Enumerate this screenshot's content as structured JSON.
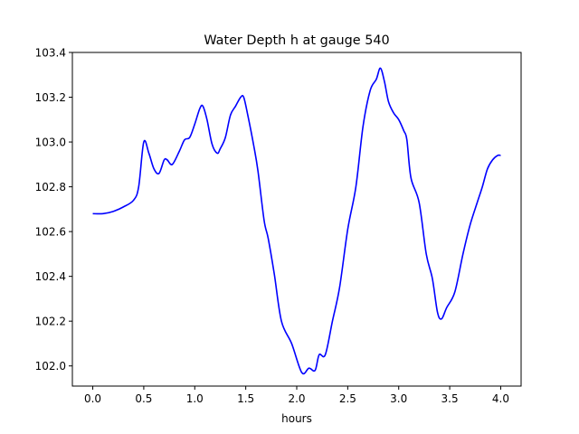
{
  "chart_data": {
    "type": "line",
    "title": "Water Depth h at gauge 540",
    "xlabel": "hours",
    "ylabel": "",
    "xlim": [
      -0.2,
      4.2
    ],
    "ylim": [
      101.91,
      103.4
    ],
    "xticks": [
      0.0,
      0.5,
      1.0,
      1.5,
      2.0,
      2.5,
      3.0,
      3.5,
      4.0
    ],
    "xtick_labels": [
      "0.0",
      "0.5",
      "1.0",
      "1.5",
      "2.0",
      "2.5",
      "3.0",
      "3.5",
      "4.0"
    ],
    "yticks": [
      102.0,
      102.2,
      102.4,
      102.6,
      102.8,
      103.0,
      103.2,
      103.4
    ],
    "ytick_labels": [
      "102.0",
      "102.2",
      "102.4",
      "102.6",
      "102.8",
      "103.0",
      "103.2",
      "103.4"
    ],
    "grid": false,
    "legend": "none",
    "series": [
      {
        "color": "#0000ff",
        "x": [
          0.0,
          0.1,
          0.2,
          0.3,
          0.4,
          0.45,
          0.5,
          0.55,
          0.6,
          0.65,
          0.7,
          0.73,
          0.78,
          0.85,
          0.9,
          0.95,
          1.0,
          1.05,
          1.08,
          1.12,
          1.17,
          1.22,
          1.25,
          1.3,
          1.35,
          1.4,
          1.45,
          1.48,
          1.52,
          1.58,
          1.62,
          1.68,
          1.72,
          1.78,
          1.85,
          1.95,
          2.05,
          2.12,
          2.18,
          2.22,
          2.28,
          2.35,
          2.42,
          2.5,
          2.58,
          2.65,
          2.72,
          2.78,
          2.82,
          2.86,
          2.9,
          2.95,
          3.0,
          3.05,
          3.08,
          3.12,
          3.2,
          3.27,
          3.33,
          3.38,
          3.42,
          3.47,
          3.55,
          3.63,
          3.7,
          3.77,
          3.82,
          3.87,
          3.92,
          3.97,
          4.0
        ],
        "y": [
          102.68,
          102.68,
          102.69,
          102.71,
          102.74,
          102.8,
          103.0,
          102.95,
          102.88,
          102.86,
          102.92,
          102.92,
          102.9,
          102.96,
          103.01,
          103.02,
          103.08,
          103.15,
          103.16,
          103.1,
          102.99,
          102.95,
          102.97,
          103.02,
          103.12,
          103.16,
          103.2,
          103.2,
          103.12,
          102.98,
          102.87,
          102.65,
          102.57,
          102.41,
          102.2,
          102.1,
          101.97,
          101.99,
          101.98,
          102.05,
          102.05,
          102.2,
          102.35,
          102.61,
          102.8,
          103.07,
          103.23,
          103.28,
          103.33,
          103.27,
          103.18,
          103.13,
          103.1,
          103.05,
          103.01,
          102.84,
          102.73,
          102.5,
          102.39,
          102.24,
          102.21,
          102.26,
          102.33,
          102.5,
          102.63,
          102.73,
          102.8,
          102.88,
          102.92,
          102.94,
          102.94
        ]
      }
    ]
  }
}
